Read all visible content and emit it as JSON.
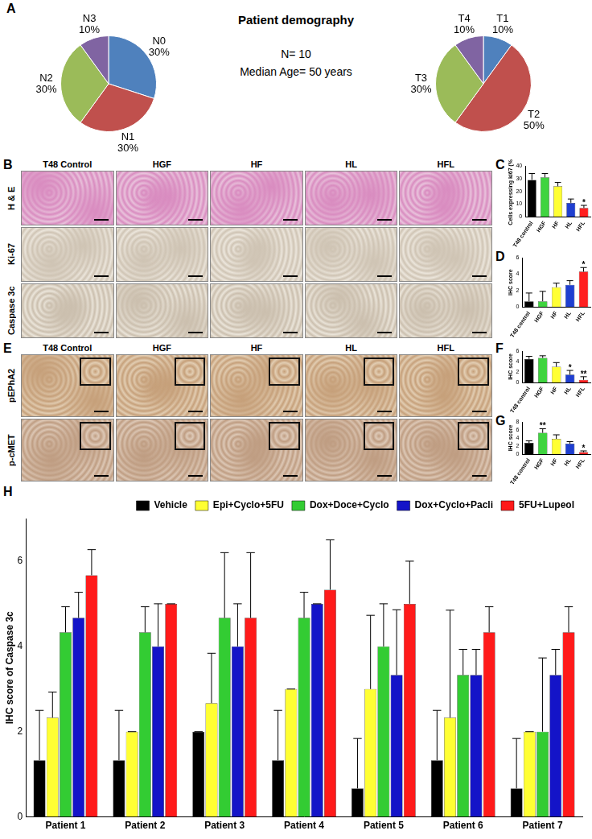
{
  "panel_labels": [
    "A",
    "B",
    "C",
    "D",
    "E",
    "F",
    "G",
    "H"
  ],
  "demography": {
    "title": "Patient demography",
    "lines": [
      "N= 10",
      "Median Age= 50 years"
    ]
  },
  "image_panels": [
    {
      "columns": [
        "T48 Control",
        "HGF",
        "HF",
        "HL",
        "HFL"
      ],
      "rows": [
        "H & E",
        "Ki-67",
        "Caspase 3c"
      ]
    },
    {
      "columns": [
        "T48 Control",
        "HGF",
        "HF",
        "HL",
        "HFL"
      ],
      "rows": [
        "pEPhA2",
        "p-cMET"
      ]
    }
  ],
  "chart_data": [
    {
      "type": "pie",
      "categories": [
        "N0",
        "N1",
        "N2",
        "N3"
      ],
      "values": [
        30,
        30,
        30,
        10
      ],
      "value_labels": [
        "30%",
        "30%",
        "30%",
        "10%"
      ],
      "colors": [
        "#4f81bd",
        "#c0504d",
        "#9bbb59",
        "#8064a2"
      ],
      "data_labels": true
    },
    {
      "type": "pie",
      "categories": [
        "T1",
        "T2",
        "T3",
        "T4"
      ],
      "values": [
        10,
        50,
        30,
        10
      ],
      "value_labels": [
        "10%",
        "50%",
        "30%",
        "10%"
      ],
      "colors": [
        "#4f81bd",
        "#c0504d",
        "#9bbb59",
        "#8064a2"
      ],
      "data_labels": true
    },
    {
      "type": "bar",
      "categories": [
        "T48 control",
        "HGF",
        "HF",
        "HL",
        "HFL"
      ],
      "values": [
        29,
        31,
        24,
        11,
        7
      ],
      "errors": [
        5,
        3,
        3,
        3,
        2
      ],
      "significance": [
        null,
        null,
        null,
        null,
        "*"
      ],
      "colors": [
        "#000000",
        "#3fd43f",
        "#ffff33",
        "#1f3fd0",
        "#ff2020"
      ],
      "y_label": "Cells expressing ki67 (%)",
      "ylim": [
        0,
        40
      ],
      "yticks": [
        0,
        10,
        20,
        30,
        40
      ],
      "grid": false
    },
    {
      "type": "bar",
      "categories": [
        "T48 control",
        "HGF",
        "HF",
        "HL",
        "HFL"
      ],
      "values": [
        0.7,
        0.7,
        2.4,
        2.7,
        4.3
      ],
      "errors": [
        1,
        1.2,
        0.5,
        0.5,
        0.5
      ],
      "significance": [
        null,
        null,
        null,
        null,
        "*"
      ],
      "colors": [
        "#000000",
        "#3fd43f",
        "#ffff33",
        "#1f3fd0",
        "#ff2020"
      ],
      "y_label": "IHC score",
      "ylim": [
        0,
        6
      ],
      "yticks": [
        0,
        2,
        4,
        6
      ],
      "grid": false
    },
    {
      "type": "bar",
      "categories": [
        "T48 control",
        "HGF",
        "HF",
        "HL",
        "HFL"
      ],
      "values": [
        4.5,
        4.7,
        3.0,
        1.5,
        0.5
      ],
      "errors": [
        0.5,
        0.4,
        0.8,
        0.8,
        0.6
      ],
      "significance": [
        null,
        null,
        null,
        "*",
        "**"
      ],
      "colors": [
        "#000000",
        "#3fd43f",
        "#ffff33",
        "#1f3fd0",
        "#ff2020"
      ],
      "y_label": "IHC score",
      "ylim": [
        0,
        6
      ],
      "yticks": [
        0,
        2,
        4,
        6
      ],
      "grid": false
    },
    {
      "type": "bar",
      "categories": [
        "T48 control",
        "HGF",
        "HF",
        "HL",
        "HFL"
      ],
      "values": [
        2.8,
        5.3,
        3.8,
        2.6,
        0.5
      ],
      "errors": [
        0.5,
        1,
        1,
        0.5,
        0.3
      ],
      "significance": [
        null,
        "**",
        null,
        null,
        "*"
      ],
      "colors": [
        "#000000",
        "#3fd43f",
        "#ffff33",
        "#1f3fd0",
        "#ff2020"
      ],
      "y_label": "IHC score",
      "ylim": [
        0,
        8
      ],
      "yticks": [
        0,
        2,
        4,
        6,
        8
      ],
      "grid": false
    },
    {
      "type": "bar",
      "categories": [
        "Patient 1",
        "Patient 2",
        "Patient 3",
        "Patient 4",
        "Patient 5",
        "Patient 6",
        "Patient 7"
      ],
      "series": [
        {
          "name": "Vehicle",
          "color": "#000000",
          "values": [
            1.33,
            1.33,
            2.0,
            1.33,
            0.67,
            1.33,
            0.67
          ],
          "errors": [
            1.17,
            1.17,
            0,
            1.17,
            1.17,
            1.17,
            1.17
          ]
        },
        {
          "name": "Epi+Cyclo+5FU",
          "color": "#ffff33",
          "values": [
            2.33,
            2.0,
            2.67,
            3.0,
            3.0,
            2.33,
            2.0
          ],
          "errors": [
            0.6,
            0,
            1.17,
            0,
            1.73,
            2.52,
            0
          ]
        },
        {
          "name": "Dox+Doce+Cyclo",
          "color": "#33cc33",
          "values": [
            4.33,
            4.33,
            4.67,
            4.67,
            4.0,
            3.33,
            2.0
          ],
          "errors": [
            0.6,
            0.6,
            1.53,
            0.6,
            1,
            0.6,
            1.73
          ]
        },
        {
          "name": "Dox+Cyclo+Pacli",
          "color": "#1414c8",
          "values": [
            4.67,
            4.0,
            4.0,
            5.0,
            3.33,
            3.33,
            3.33
          ],
          "errors": [
            0.6,
            1,
            1,
            0,
            1.53,
            0.6,
            0.6
          ]
        },
        {
          "name": "5FU+Lupeol",
          "color": "#ff1a1a",
          "values": [
            5.67,
            5.0,
            4.67,
            5.33,
            5.0,
            4.33,
            4.33
          ],
          "errors": [
            0.6,
            0,
            1.53,
            1.17,
            1,
            0.6,
            0.6
          ]
        }
      ],
      "y_label": "IHC score of Caspase 3c",
      "ylim": [
        0,
        7
      ],
      "yticks": [
        0,
        2,
        4,
        6
      ],
      "legend": "top-right",
      "grid": false
    }
  ]
}
